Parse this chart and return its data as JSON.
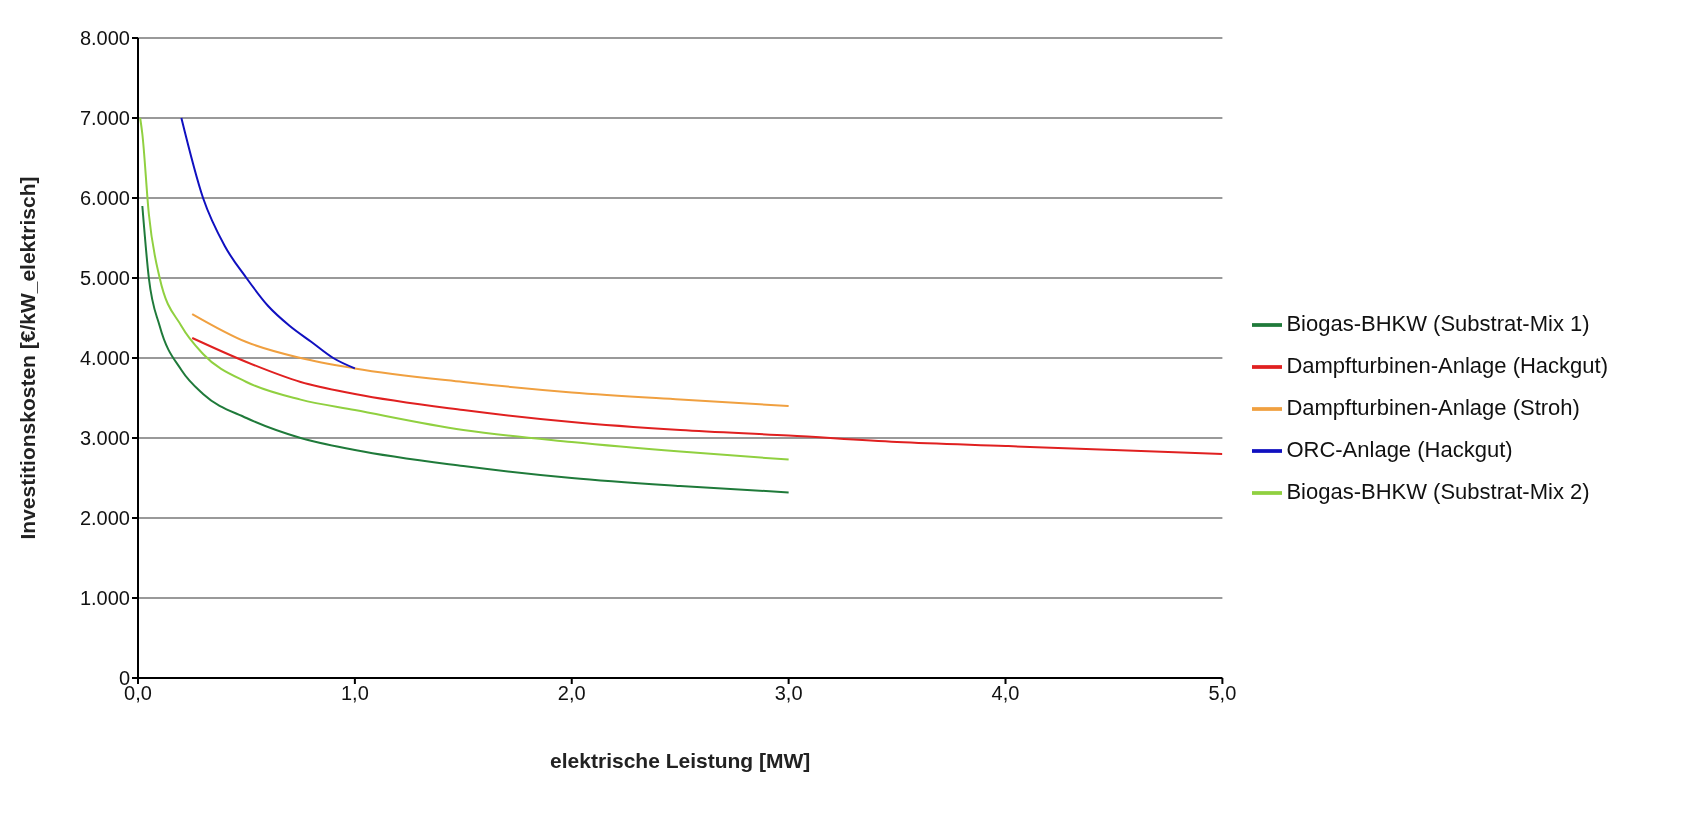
{
  "chart_data": {
    "type": "line",
    "xlabel": "elektrische Leistung [MW]",
    "ylabel": "Investitionskosten [€/kW_elektrisch]",
    "xlim": [
      0,
      5
    ],
    "xticks": [
      {
        "value": 0,
        "label": "0,0"
      },
      {
        "value": 1,
        "label": "1,0"
      },
      {
        "value": 2,
        "label": "2,0"
      },
      {
        "value": 3,
        "label": "3,0"
      },
      {
        "value": 4,
        "label": "4,0"
      },
      {
        "value": 5,
        "label": "5,0"
      }
    ],
    "ylim": [
      0,
      8000
    ],
    "yticks": [
      0,
      {
        "value": 1000,
        "label": "1.000"
      },
      {
        "value": 2000,
        "label": "2.000"
      },
      {
        "value": 3000,
        "label": "3.000"
      },
      {
        "value": 4000,
        "label": "4.000"
      },
      {
        "value": 5000,
        "label": "5.000"
      },
      {
        "value": 6000,
        "label": "6.000"
      },
      {
        "value": 7000,
        "label": "7.000"
      },
      {
        "value": 8000,
        "label": "8.000"
      }
    ],
    "grid": "y",
    "legend": "right",
    "marker": "none",
    "line_style": "solid",
    "series": [
      {
        "name": "Biogas-BHKW (Substrat-Mix 1)",
        "color": "#1f7a3a",
        "x": [
          0.02,
          0.05,
          0.1,
          0.2,
          0.3,
          0.5,
          0.75,
          1,
          1.5,
          2,
          2.5,
          3
        ],
        "values": [
          5900,
          5000,
          4400,
          3850,
          3550,
          3250,
          3000,
          2850,
          2650,
          2500,
          2400,
          2320
        ]
      },
      {
        "name": "Dampfturbinen-Anlage (Hackgut)",
        "color": "#e02020",
        "x": [
          0.25,
          0.5,
          0.75,
          1,
          1.5,
          2,
          2.5,
          3,
          3.5,
          4,
          4.5,
          5
        ],
        "values": [
          4250,
          3950,
          3700,
          3550,
          3350,
          3200,
          3100,
          3030,
          2950,
          2900,
          2850,
          2800
        ]
      },
      {
        "name": "Dampfturbinen-Anlage (Stroh)",
        "color": "#f0a040",
        "x": [
          0.25,
          0.5,
          0.75,
          1,
          1.5,
          2,
          2.5,
          3
        ],
        "values": [
          4550,
          4200,
          4000,
          3870,
          3700,
          3570,
          3480,
          3400
        ]
      },
      {
        "name": "ORC-Anlage (Hackgut)",
        "color": "#1010c0",
        "x": [
          0.2,
          0.3,
          0.4,
          0.5,
          0.6,
          0.7,
          0.8,
          0.9,
          1
        ],
        "values": [
          7000,
          6000,
          5400,
          5000,
          4650,
          4400,
          4200,
          4000,
          3870
        ]
      },
      {
        "name": "Biogas-BHKW (Substrat-Mix 2)",
        "color": "#90d040",
        "x": [
          0.01,
          0.02,
          0.05,
          0.1,
          0.2,
          0.3,
          0.5,
          0.75,
          1,
          1.5,
          2,
          2.5,
          3
        ],
        "values": [
          7000,
          6800,
          5800,
          5000,
          4400,
          4050,
          3700,
          3480,
          3350,
          3100,
          2950,
          2830,
          2730
        ]
      }
    ]
  }
}
